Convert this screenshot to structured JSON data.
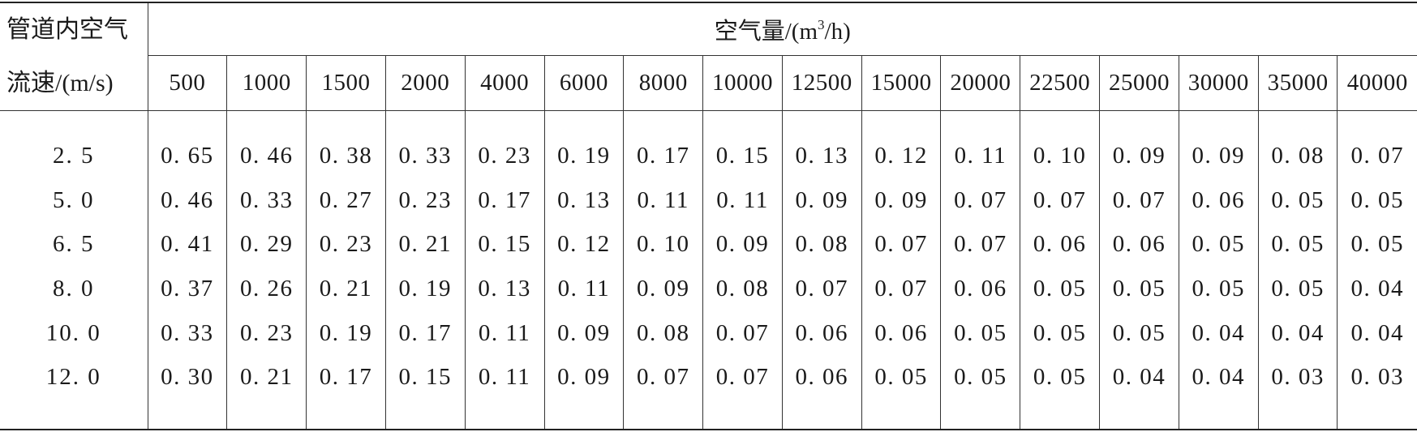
{
  "table": {
    "corner_line1": "管道内空气",
    "corner_line2": "流速/(m/s)",
    "group_header_prefix": "空气量/(m",
    "group_header_sup": "3",
    "group_header_suffix": "/h)",
    "columns": [
      "500",
      "1000",
      "1500",
      "2000",
      "4000",
      "6000",
      "8000",
      "10000",
      "12500",
      "15000",
      "20000",
      "22500",
      "25000",
      "30000",
      "35000",
      "40000"
    ],
    "rows": [
      {
        "velocity": "2. 5",
        "values": [
          "0. 65",
          "0. 46",
          "0. 38",
          "0. 33",
          "0. 23",
          "0. 19",
          "0. 17",
          "0. 15",
          "0. 13",
          "0. 12",
          "0. 11",
          "0. 10",
          "0. 09",
          "0. 09",
          "0. 08",
          "0. 07"
        ]
      },
      {
        "velocity": "5. 0",
        "values": [
          "0. 46",
          "0. 33",
          "0. 27",
          "0. 23",
          "0. 17",
          "0. 13",
          "0. 11",
          "0. 11",
          "0. 09",
          "0. 09",
          "0. 07",
          "0. 07",
          "0. 07",
          "0. 06",
          "0. 05",
          "0. 05"
        ]
      },
      {
        "velocity": "6. 5",
        "values": [
          "0. 41",
          "0. 29",
          "0. 23",
          "0. 21",
          "0. 15",
          "0. 12",
          "0. 10",
          "0. 09",
          "0. 08",
          "0. 07",
          "0. 07",
          "0. 06",
          "0. 06",
          "0. 05",
          "0. 05",
          "0. 05"
        ]
      },
      {
        "velocity": "8. 0",
        "values": [
          "0. 37",
          "0. 26",
          "0. 21",
          "0. 19",
          "0. 13",
          "0. 11",
          "0. 09",
          "0. 08",
          "0. 07",
          "0. 07",
          "0. 06",
          "0. 05",
          "0. 05",
          "0. 05",
          "0. 05",
          "0. 04"
        ]
      },
      {
        "velocity": "10. 0",
        "values": [
          "0. 33",
          "0. 23",
          "0. 19",
          "0. 17",
          "0. 11",
          "0. 09",
          "0. 08",
          "0. 07",
          "0. 06",
          "0. 06",
          "0. 05",
          "0. 05",
          "0. 05",
          "0. 04",
          "0. 04",
          "0. 04"
        ]
      },
      {
        "velocity": "12. 0",
        "values": [
          "0. 30",
          "0. 21",
          "0. 17",
          "0. 15",
          "0. 11",
          "0. 09",
          "0. 07",
          "0. 07",
          "0. 06",
          "0. 05",
          "0. 05",
          "0. 05",
          "0. 04",
          "0. 04",
          "0. 03",
          "0. 03"
        ]
      }
    ]
  }
}
